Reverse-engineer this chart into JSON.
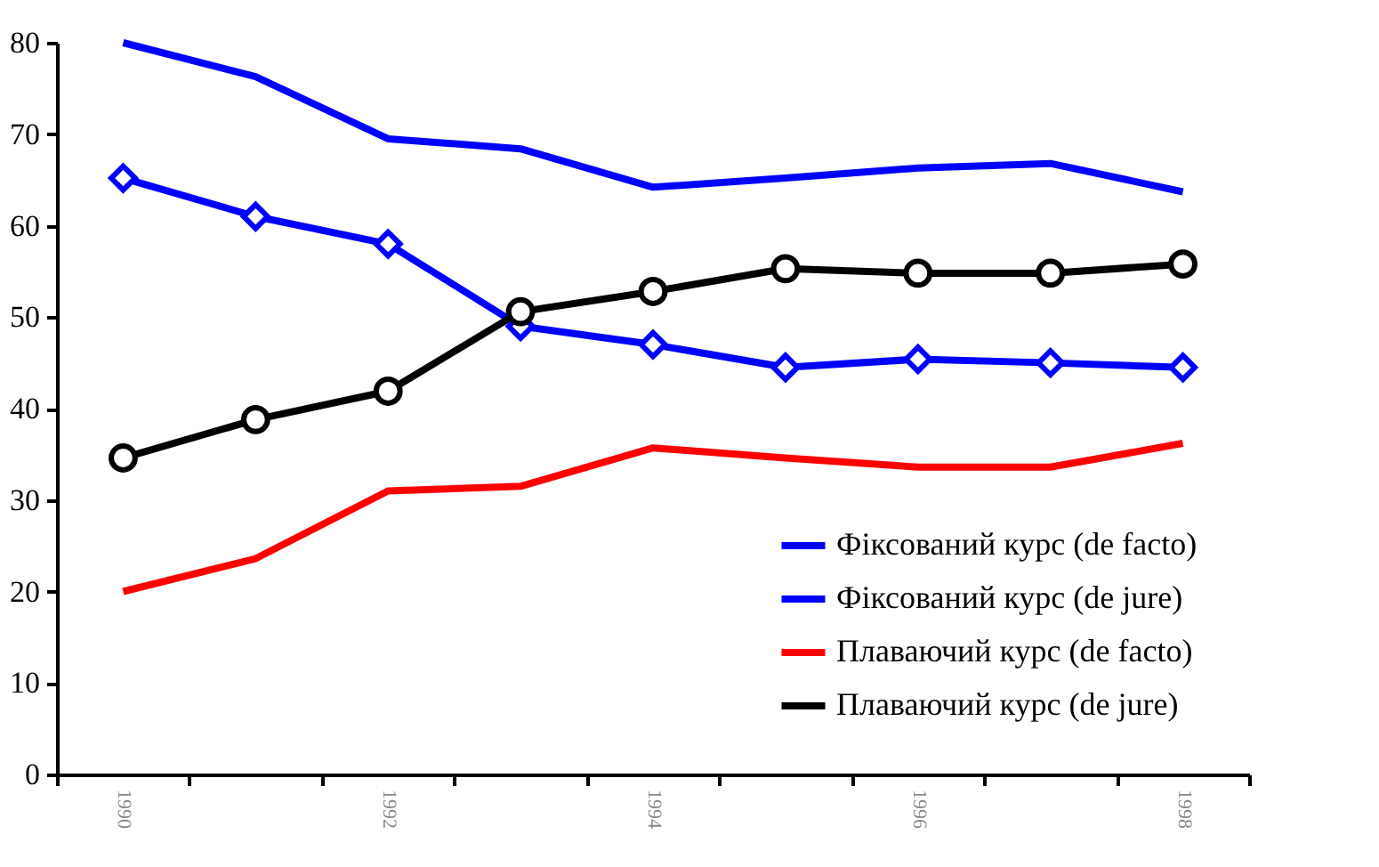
{
  "chart_data": {
    "type": "line",
    "categories": [
      "1990",
      null,
      "1992",
      null,
      "1994",
      null,
      "1996",
      null,
      "1998"
    ],
    "series": [
      {
        "name": "Фіксований курс (de facto)",
        "color": "#0000ff",
        "marker": "none",
        "values": [
          80,
          76.3,
          69.5,
          68.4,
          64.2,
          65.2,
          66.3,
          66.8,
          63.7
        ]
      },
      {
        "name": "Фіксований курс (de jure)",
        "color": "#0000ff",
        "marker": "diamond",
        "values": [
          65.2,
          61,
          58,
          49,
          47,
          44.5,
          45.4,
          45,
          44.5
        ]
      },
      {
        "name": "Плаваючий курс (de facto)",
        "color": "#ff0000",
        "marker": "none",
        "values": [
          20,
          23.6,
          31,
          31.5,
          35.7,
          34.6,
          33.6,
          33.6,
          36.2
        ]
      },
      {
        "name": "Плаваючий курс (de jure)",
        "color": "#000000",
        "marker": "circle",
        "values": [
          34.6,
          38.8,
          41.9,
          50.6,
          52.8,
          55.3,
          54.8,
          54.8,
          55.8
        ]
      }
    ],
    "ylim": [
      0,
      80
    ],
    "yticks": [
      0,
      10,
      20,
      30,
      40,
      50,
      60,
      70,
      80
    ],
    "grid": false,
    "legend": "bottom right",
    "line_style": "solid"
  }
}
